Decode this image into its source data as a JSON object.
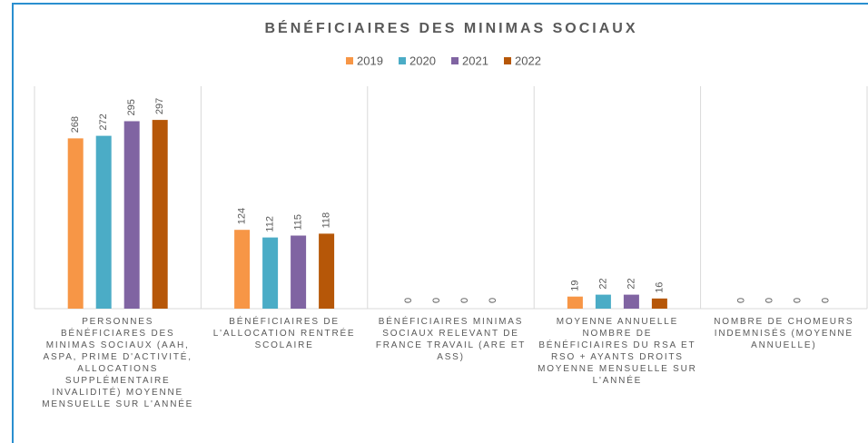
{
  "chart_data": {
    "type": "bar",
    "title": "BÉNÉFICIAIRES DES MINIMAS SOCIAUX",
    "categories": [
      "PERSONNES BÉNÉFICIARES DES MINIMAS SOCIAUX (AAH, ASPA, PRIME D'ACTIVITÉ, ALLOCATIONS SUPPLÉMENTAIRE INVALIDITÉ) MOYENNE MENSUELLE SUR L'ANNÉE",
      "BÉNÉFICIAIRES DE L'ALLOCATION RENTRÉE SCOLAIRE",
      "BÉNÉFICIAIRES MINIMAS SOCIAUX RELEVANT DE FRANCE TRAVAIL (ARE ET ASS)",
      "MOYENNE ANNUELLE NOMBRE DE BÉNÉFICIAIRES DU RSA ET RSO + AYANTS DROITS MOYENNE MENSUELLE SUR L'ANNÉE",
      "NOMBRE DE CHOMEURS INDEMNISÉS (MOYENNE ANNUELLE)"
    ],
    "series": [
      {
        "name": "2019",
        "color": "#f79646",
        "values": [
          268,
          124,
          0,
          19,
          0
        ]
      },
      {
        "name": "2020",
        "color": "#4bacc6",
        "values": [
          272,
          112,
          0,
          22,
          0
        ]
      },
      {
        "name": "2021",
        "color": "#8064a2",
        "values": [
          295,
          115,
          0,
          22,
          0
        ]
      },
      {
        "name": "2022",
        "color": "#b65708",
        "values": [
          297,
          118,
          0,
          16,
          0
        ]
      }
    ],
    "ylim": [
      0,
      350
    ]
  }
}
